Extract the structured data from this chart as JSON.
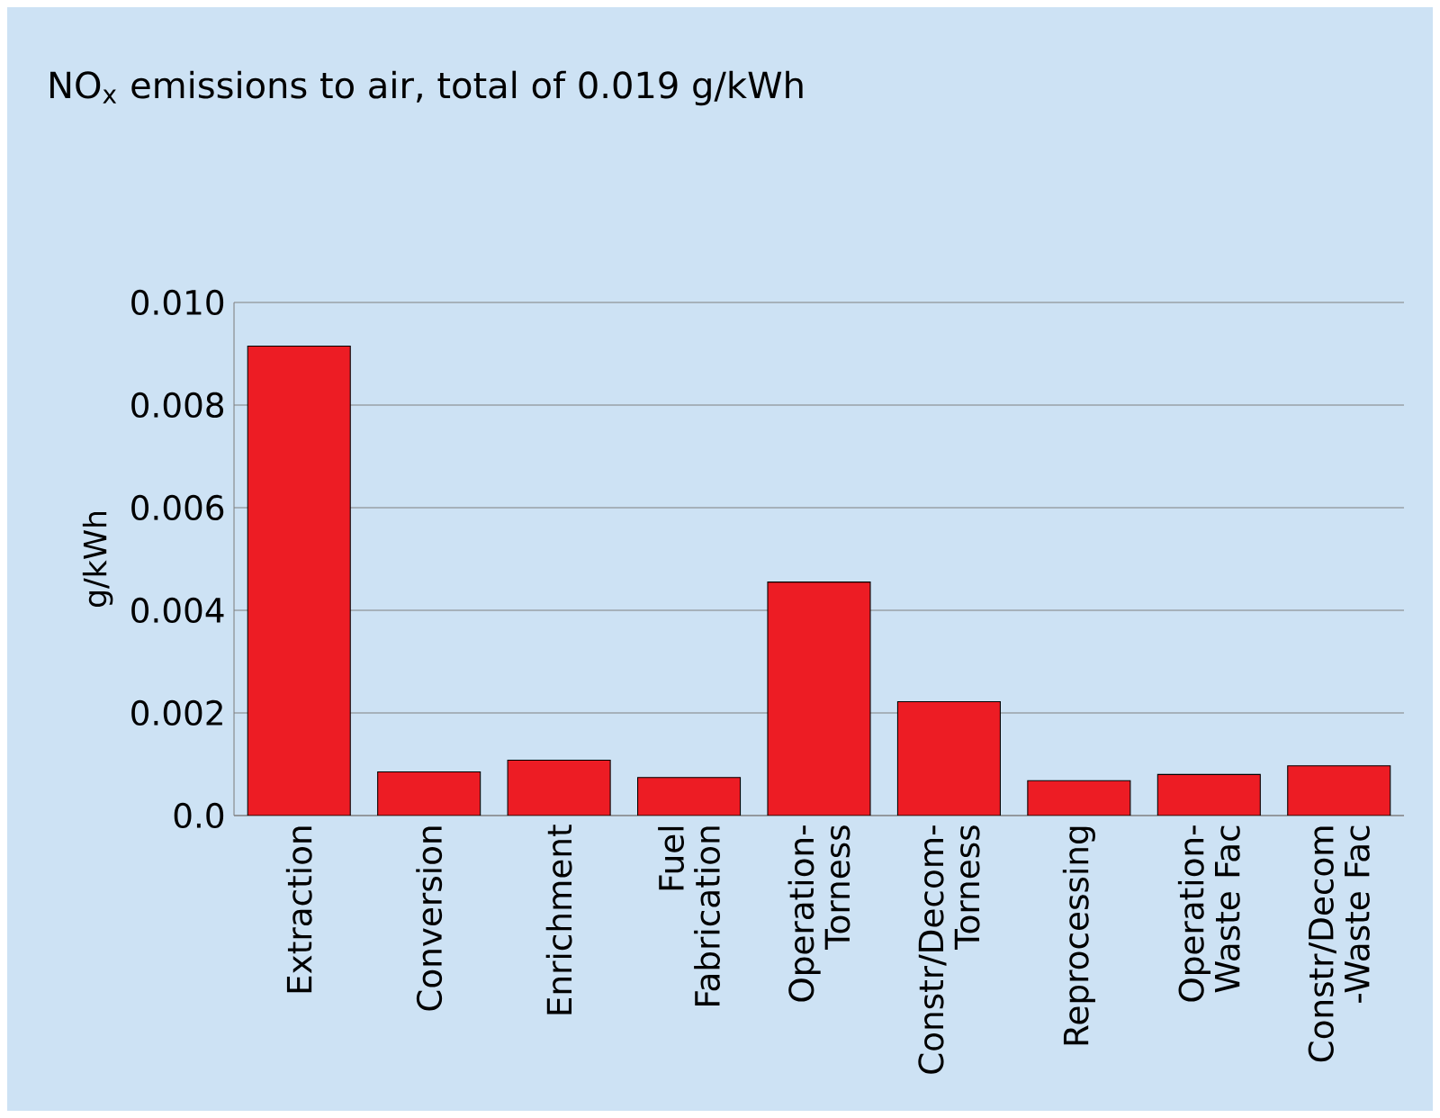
{
  "chart_data": {
    "type": "bar",
    "title": "NO$_{x}$ emissions to air, total of 0.019 g/kWh",
    "ylabel": "g/kWh",
    "categories": [
      "Extraction",
      "Conversion",
      "Enrichment",
      "Fuel Fabrication",
      "Operation-Torness",
      "Constr/Decom-Torness",
      "Reprocessing",
      "Operation-Waste Fac",
      "Constr/Decom -Waste Fac"
    ],
    "values": [
      0.00915,
      0.00085,
      0.00108,
      0.00074,
      0.00455,
      0.00222,
      0.00068,
      0.0008,
      0.00097
    ],
    "color": "#ed1c24",
    "ylim": [
      0,
      0.01
    ],
    "yticks": [
      {
        "value": 0,
        "label": "0.0"
      },
      {
        "value": 0.002,
        "label": "0.002"
      },
      {
        "value": 0.004,
        "label": "0.004"
      },
      {
        "value": 0.006,
        "label": "0.006"
      },
      {
        "value": 0.008,
        "label": "0.008"
      },
      {
        "value": 0.01,
        "label": "0.010"
      }
    ],
    "grid": "y"
  }
}
